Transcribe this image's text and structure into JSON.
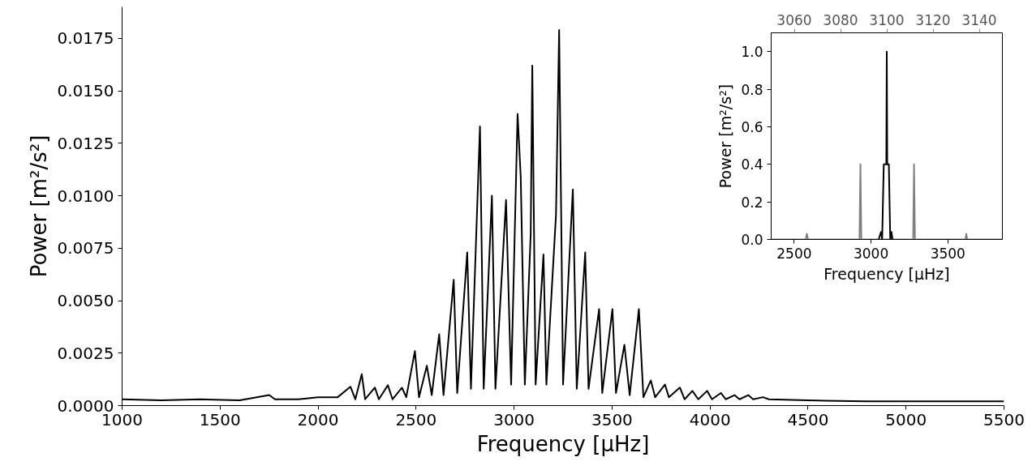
{
  "chart_data": [
    {
      "type": "line",
      "xlabel": "Frequency [μHz]",
      "ylabel": "Power [m²/s²]",
      "xlim": [
        1000,
        5500
      ],
      "xticks": [
        1000,
        1500,
        2000,
        2500,
        3000,
        3500,
        4000,
        4500,
        5000,
        5500
      ],
      "ylim": [
        0,
        0.019
      ],
      "yticks": [
        {
          "value": 0,
          "label": "0.0000"
        },
        {
          "value": 0.0025,
          "label": "0.0025"
        },
        {
          "value": 0.005,
          "label": "0.0050"
        },
        {
          "value": 0.0075,
          "label": "0.0075"
        },
        {
          "value": 0.01,
          "label": "0.0100"
        },
        {
          "value": 0.0125,
          "label": "0.0125"
        },
        {
          "value": 0.015,
          "label": "0.0150"
        },
        {
          "value": 0.0175,
          "label": "0.0175"
        }
      ],
      "grid": false,
      "marker": "none",
      "line_style": "solid",
      "series": [
        {
          "color": "#000000",
          "x": [
            1000,
            1200,
            1400,
            1600,
            1751,
            1780,
            1900,
            2000,
            2100,
            2165,
            2190,
            2223,
            2240,
            2290,
            2310,
            2356,
            2380,
            2428,
            2450,
            2494,
            2515,
            2555,
            2580,
            2618,
            2640,
            2692,
            2710,
            2761,
            2780,
            2826,
            2845,
            2887,
            2905,
            2959,
            2985,
            3018,
            3034,
            3055,
            3085,
            3093,
            3110,
            3150,
            3165,
            3214,
            3230,
            3250,
            3300,
            3320,
            3363,
            3380,
            3434,
            3450,
            3502,
            3520,
            3563,
            3590,
            3637,
            3660,
            3698,
            3720,
            3770,
            3790,
            3846,
            3870,
            3910,
            3940,
            3985,
            4010,
            4055,
            4080,
            4125,
            4150,
            4195,
            4220,
            4270,
            4300,
            4500,
            4800,
            5000,
            5250,
            5500
          ],
          "values": [
            0.0003,
            0.00025,
            0.0003,
            0.00025,
            0.0005,
            0.0003,
            0.0003,
            0.0004,
            0.0004,
            0.0009,
            0.0003,
            0.0015,
            0.0003,
            0.00086,
            0.0003,
            0.00097,
            0.0003,
            0.00085,
            0.0004,
            0.0026,
            0.0004,
            0.0019,
            0.0005,
            0.0034,
            0.0005,
            0.006,
            0.0006,
            0.0073,
            0.0008,
            0.0133,
            0.0008,
            0.01,
            0.0008,
            0.0098,
            0.001,
            0.0139,
            0.0109,
            0.001,
            0.0082,
            0.0162,
            0.001,
            0.0072,
            0.001,
            0.0091,
            0.0179,
            0.001,
            0.0103,
            0.0008,
            0.0073,
            0.0008,
            0.0046,
            0.0006,
            0.0046,
            0.0006,
            0.0029,
            0.0005,
            0.0046,
            0.0004,
            0.0012,
            0.0004,
            0.001,
            0.0004,
            0.00086,
            0.0003,
            0.0007,
            0.0003,
            0.0007,
            0.0003,
            0.0006,
            0.0003,
            0.0005,
            0.0003,
            0.0005,
            0.0003,
            0.0004,
            0.0003,
            0.00025,
            0.0002,
            0.0002,
            0.0002,
            0.0002
          ]
        }
      ]
    },
    {
      "type": "line",
      "xlabel": "Frequency [μHz]",
      "ylabel": "Power [m²/s²]",
      "xlim": [
        2350,
        3855
      ],
      "xticks": [
        2500,
        3000,
        3500
      ],
      "x2lim": [
        3050,
        3150
      ],
      "x2ticks": [
        3060,
        3080,
        3100,
        3120,
        3140
      ],
      "ylim": [
        0,
        1.1
      ],
      "yticks": [
        {
          "value": 0,
          "label": "0.0"
        },
        0.2,
        0.4,
        0.6,
        0.8,
        {
          "value": 1,
          "label": "1.0"
        }
      ],
      "grid": false,
      "marker": "none",
      "line_style": "solid",
      "series": [
        {
          "color": "#808080",
          "x": [
            2350,
            2575,
            2582,
            2590,
            2925,
            2931,
            2937,
            3274,
            3280,
            3286,
            3614,
            3620,
            3626,
            3855
          ],
          "values": [
            0,
            0,
            0.03,
            0,
            0,
            0.4,
            0,
            0,
            0.4,
            0,
            0,
            0.03,
            0,
            0
          ]
        },
        {
          "color": "#000000",
          "axis": "x2",
          "x": [
            3096.5,
            3097.5,
            3098,
            3098.7,
            3099.8,
            3100,
            3100.2,
            3100.9,
            3101.5,
            3102,
            3102.5
          ],
          "values": [
            0,
            0.04,
            0,
            0.4,
            0.4,
            1.0,
            0.4,
            0.4,
            0,
            0.04,
            0
          ]
        }
      ]
    }
  ]
}
